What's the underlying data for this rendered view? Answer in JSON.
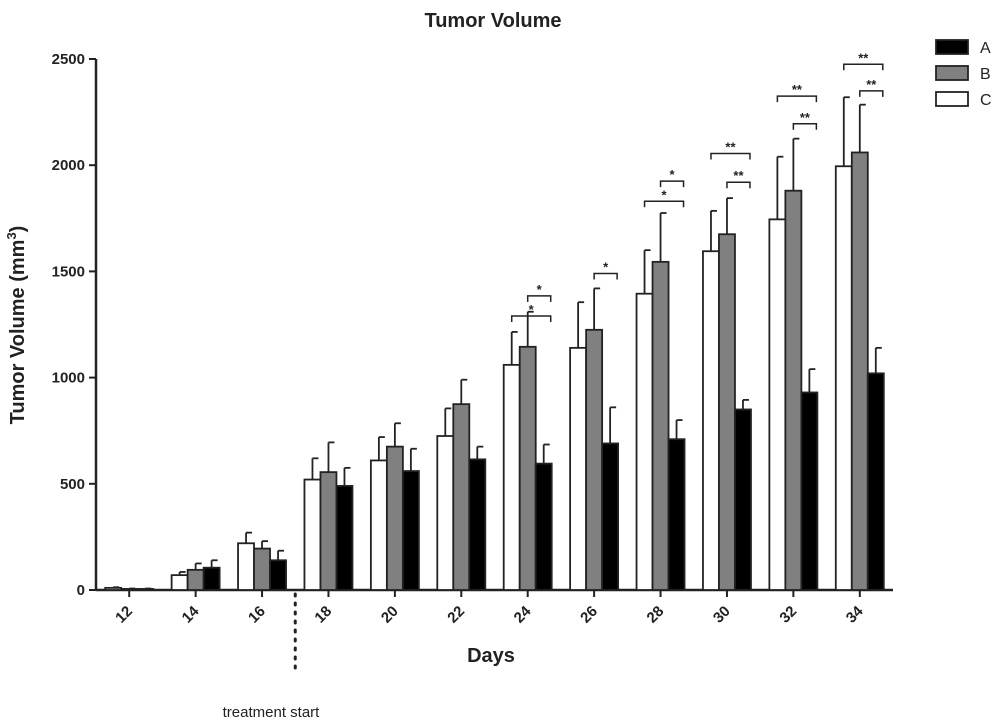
{
  "chart_data": {
    "type": "bar",
    "title": "Tumor Volume",
    "xlabel": "Days",
    "ylabel": "Tumor Volume (mm³)",
    "ylabel_base": "Tumor Volume (mm",
    "ylabel_sup": "3",
    "ylabel_close": ")",
    "ylim": [
      0,
      2500
    ],
    "yticks": [
      0,
      500,
      1000,
      1500,
      2000,
      2500
    ],
    "categories": [
      "12",
      "14",
      "16",
      "18",
      "20",
      "22",
      "24",
      "26",
      "28",
      "30",
      "32",
      "34"
    ],
    "bar_order": [
      "C",
      "B",
      "A"
    ],
    "series": [
      {
        "name": "A",
        "color": "#000000",
        "values": [
          5,
          105,
          140,
          490,
          560,
          615,
          595,
          690,
          710,
          850,
          930,
          1020
        ],
        "errors": [
          2,
          35,
          45,
          85,
          105,
          60,
          90,
          170,
          90,
          45,
          110,
          120
        ]
      },
      {
        "name": "B",
        "color": "#808080",
        "values": [
          5,
          95,
          195,
          555,
          675,
          875,
          1145,
          1225,
          1545,
          1675,
          1880,
          2060
        ],
        "errors": [
          2,
          30,
          35,
          140,
          110,
          115,
          165,
          195,
          230,
          170,
          245,
          225
        ]
      },
      {
        "name": "C",
        "color": "#ffffff",
        "values": [
          10,
          70,
          220,
          520,
          610,
          725,
          1060,
          1140,
          1395,
          1595,
          1745,
          1995
        ],
        "errors": [
          3,
          15,
          50,
          100,
          110,
          130,
          155,
          215,
          205,
          190,
          295,
          325
        ]
      }
    ],
    "significance": [
      {
        "category": "24",
        "from": "C",
        "to": "A",
        "label": "*",
        "y": 1290
      },
      {
        "category": "24",
        "from": "B",
        "to": "A",
        "label": "*",
        "y": 1385
      },
      {
        "category": "26",
        "from": "B",
        "to": "A",
        "label": "*",
        "y": 1490
      },
      {
        "category": "28",
        "from": "C",
        "to": "A",
        "label": "*",
        "y": 1830
      },
      {
        "category": "28",
        "from": "B",
        "to": "A",
        "label": "*",
        "y": 1925
      },
      {
        "category": "30",
        "from": "C",
        "to": "A",
        "label": "**",
        "y": 2055
      },
      {
        "category": "30",
        "from": "B",
        "to": "A",
        "label": "**",
        "y": 1920
      },
      {
        "category": "32",
        "from": "C",
        "to": "A",
        "label": "**",
        "y": 2325
      },
      {
        "category": "32",
        "from": "B",
        "to": "A",
        "label": "**",
        "y": 2195
      },
      {
        "category": "34",
        "from": "C",
        "to": "A",
        "label": "**",
        "y": 2475
      },
      {
        "category": "34",
        "from": "B",
        "to": "A",
        "label": "**",
        "y": 2350
      }
    ],
    "legend": {
      "position": "top-right",
      "entries": [
        "A",
        "B",
        "C"
      ]
    },
    "grid": false,
    "annotation": {
      "text": "treatment start",
      "between": [
        "16",
        "18"
      ]
    }
  }
}
